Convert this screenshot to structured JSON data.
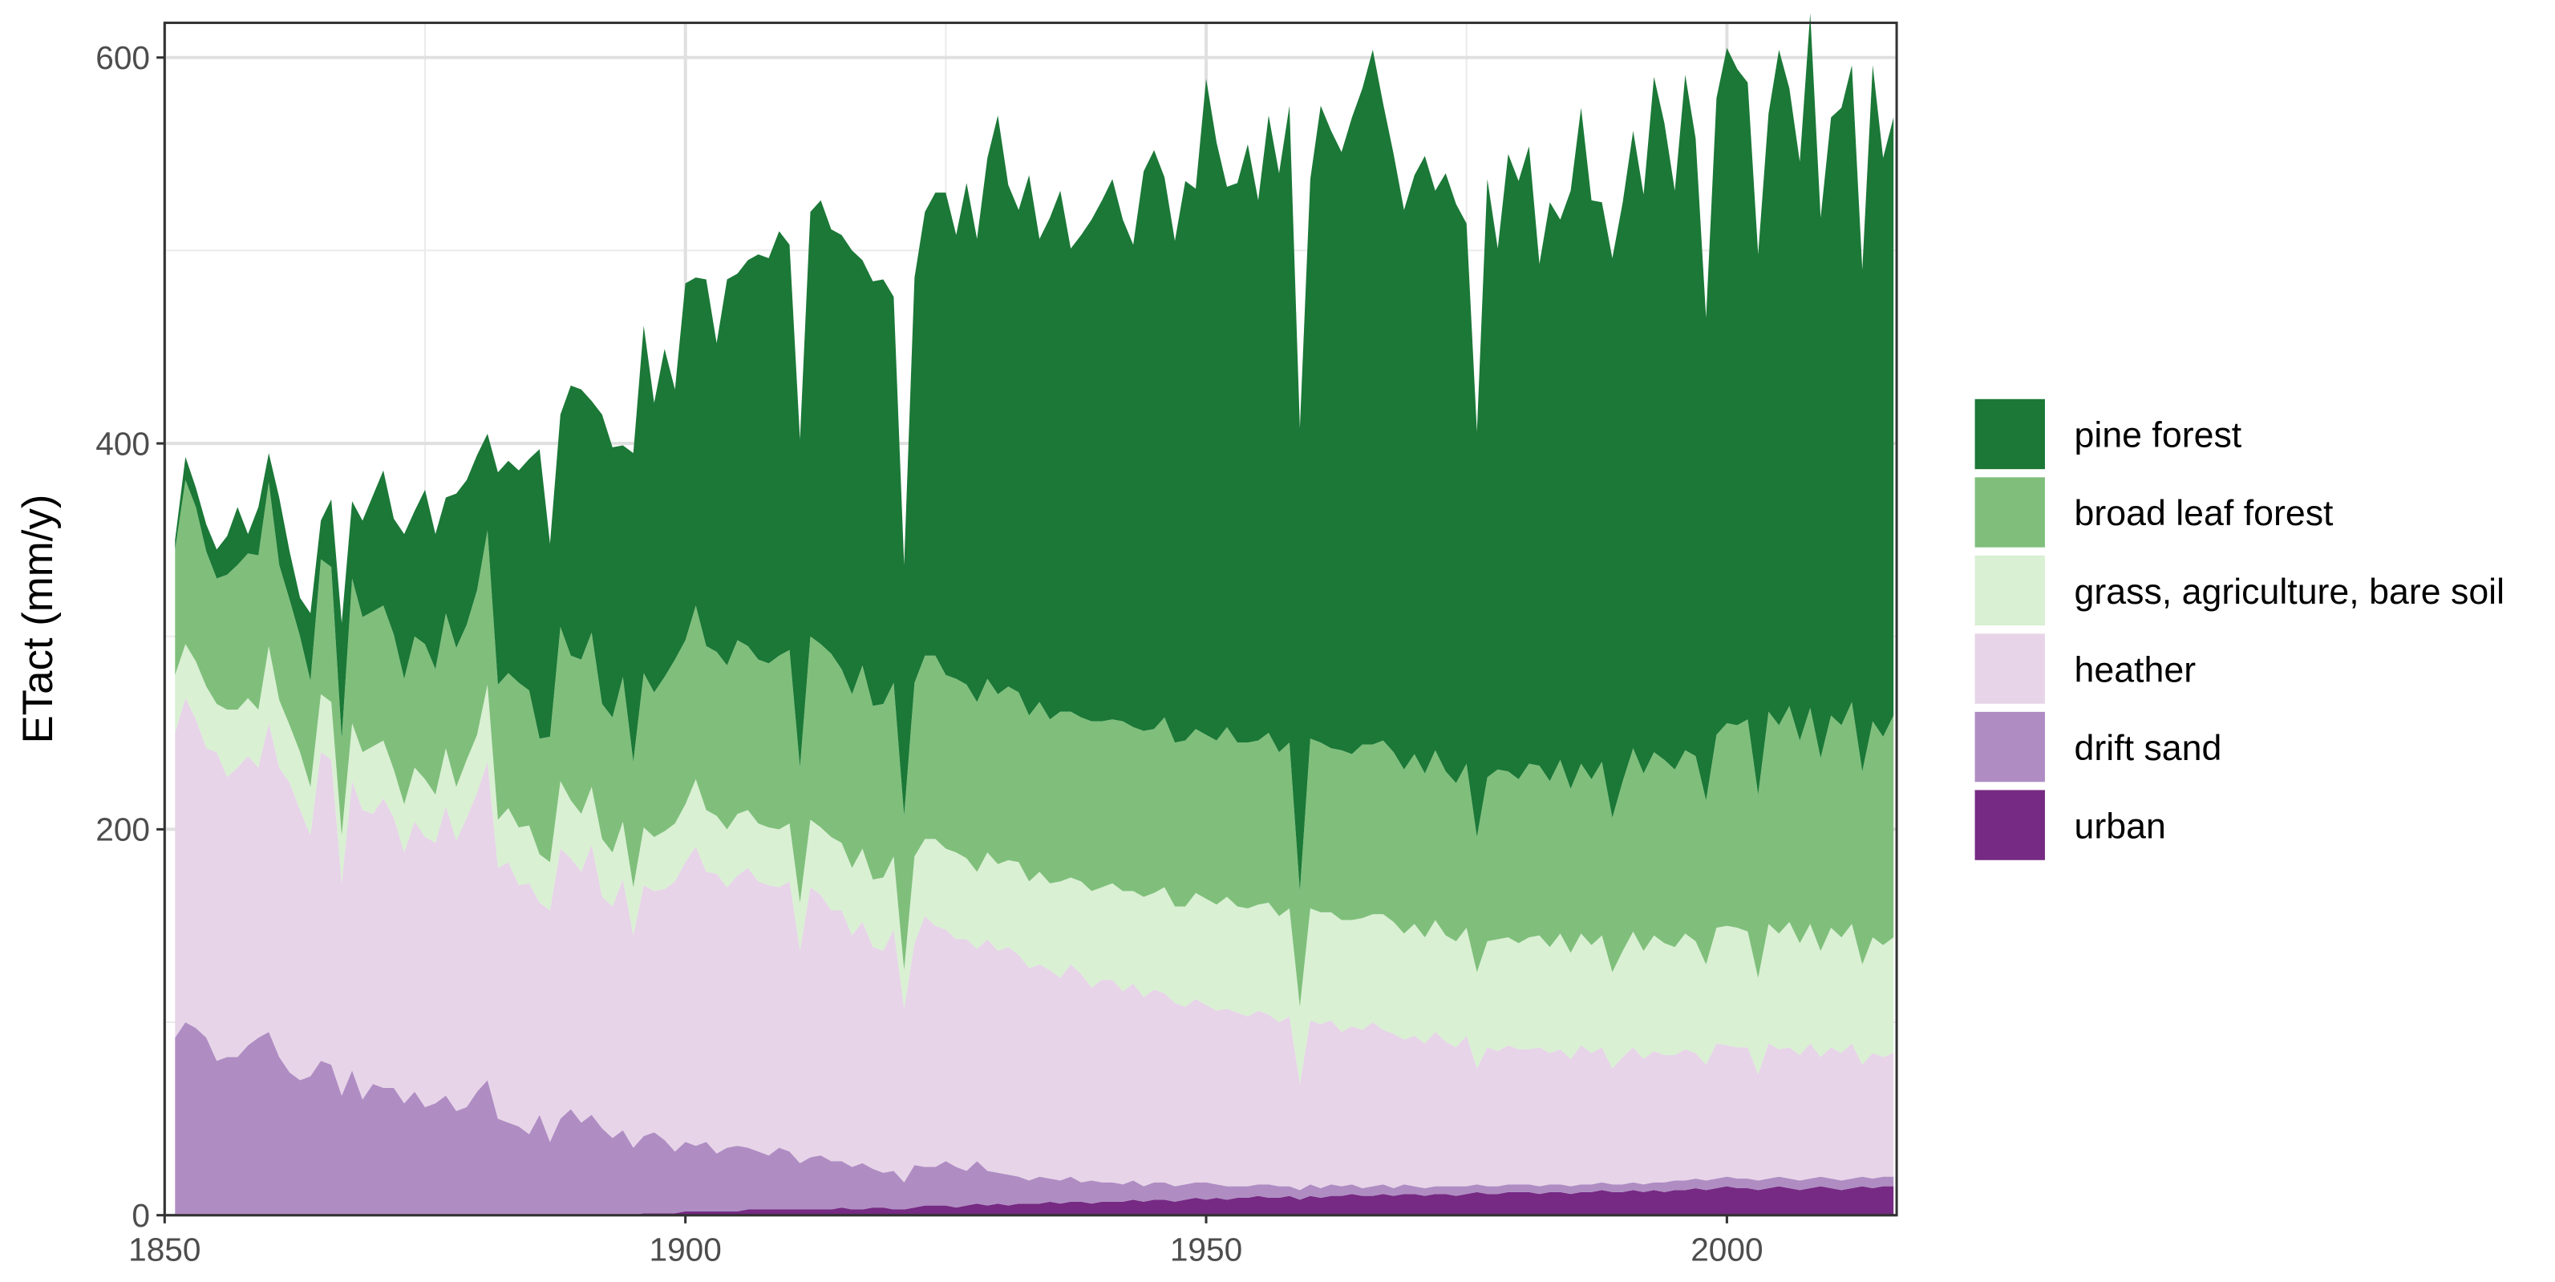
{
  "chart_data": {
    "type": "stacked_area",
    "y_label": "ETact (mm/y)",
    "x": [
      1851,
      1852,
      1853,
      1854,
      1855,
      1856,
      1857,
      1858,
      1859,
      1860,
      1861,
      1862,
      1863,
      1864,
      1865,
      1866,
      1867,
      1868,
      1869,
      1870,
      1871,
      1872,
      1873,
      1874,
      1875,
      1876,
      1877,
      1878,
      1879,
      1880,
      1881,
      1882,
      1883,
      1884,
      1885,
      1886,
      1887,
      1888,
      1889,
      1890,
      1891,
      1892,
      1893,
      1894,
      1895,
      1896,
      1897,
      1898,
      1899,
      1900,
      1901,
      1902,
      1903,
      1904,
      1905,
      1906,
      1907,
      1908,
      1909,
      1910,
      1911,
      1912,
      1913,
      1914,
      1915,
      1916,
      1917,
      1918,
      1919,
      1920,
      1921,
      1922,
      1923,
      1924,
      1925,
      1926,
      1927,
      1928,
      1929,
      1930,
      1931,
      1932,
      1933,
      1934,
      1935,
      1936,
      1937,
      1938,
      1939,
      1940,
      1941,
      1942,
      1943,
      1944,
      1945,
      1946,
      1947,
      1948,
      1949,
      1950,
      1951,
      1952,
      1953,
      1954,
      1955,
      1956,
      1957,
      1958,
      1959,
      1960,
      1961,
      1962,
      1963,
      1964,
      1965,
      1966,
      1967,
      1968,
      1969,
      1970,
      1971,
      1972,
      1973,
      1974,
      1975,
      1976,
      1977,
      1978,
      1979,
      1980,
      1981,
      1982,
      1983,
      1984,
      1985,
      1986,
      1987,
      1988,
      1989,
      1990,
      1991,
      1992,
      1993,
      1994,
      1995,
      1996,
      1997,
      1998,
      1999,
      2000,
      2001,
      2002,
      2003,
      2004,
      2005,
      2006,
      2007,
      2008,
      2009,
      2010,
      2011,
      2012,
      2013,
      2014,
      2015,
      2016
    ],
    "series": [
      {
        "name": "pine forest",
        "color": "#1b7837",
        "values": [
          5,
          12,
          10,
          14,
          15,
          20,
          30,
          10,
          25,
          15,
          35,
          25,
          20,
          35,
          20,
          35,
          60,
          40,
          50,
          60,
          70,
          60,
          75,
          65,
          80,
          70,
          60,
          80,
          75,
          70,
          50,
          110,
          110,
          110,
          120,
          150,
          100,
          110,
          140,
          140,
          120,
          150,
          140,
          120,
          160,
          180,
          150,
          170,
          140,
          185,
          170,
          190,
          160,
          200,
          190,
          200,
          210,
          210,
          220,
          210,
          170,
          220,
          230,
          220,
          225,
          230,
          210,
          220,
          220,
          200,
          130,
          210,
          230,
          240,
          250,
          230,
          260,
          240,
          270,
          300,
          260,
          250,
          280,
          240,
          260,
          270,
          240,
          250,
          260,
          270,
          280,
          260,
          250,
          290,
          300,
          280,
          260,
          290,
          280,
          340,
          310,
          280,
          290,
          310,
          280,
          320,
          300,
          330,
          240,
          290,
          330,
          320,
          310,
          330,
          340,
          360,
          330,
          310,
          290,
          300,
          320,
          290,
          310,
          300,
          280,
          210,
          310,
          270,
          320,
          310,
          320,
          260,
          300,
          280,
          310,
          340,
          300,
          290,
          290,
          300,
          320,
          300,
          350,
          330,
          300,
          350,
          320,
          250,
          330,
          350,
          340,
          330,
          280,
          310,
          350,
          320,
          300,
          360,
          280,
          310,
          320,
          330,
          260,
          340,
          300,
          310
        ]
      },
      {
        "name": "broad leaf forest",
        "color": "#7fbf7b",
        "values": [
          65,
          85,
          80,
          70,
          65,
          70,
          75,
          75,
          80,
          85,
          70,
          65,
          60,
          55,
          70,
          70,
          50,
          75,
          70,
          70,
          70,
          70,
          65,
          68,
          70,
          65,
          70,
          72,
          70,
          75,
          80,
          70,
          70,
          75,
          70,
          60,
          65,
          80,
          75,
          80,
          80,
          70,
          70,
          75,
          65,
          80,
          75,
          80,
          85,
          85,
          90,
          85,
          85,
          85,
          90,
          85,
          85,
          85,
          90,
          90,
          70,
          95,
          95,
          95,
          90,
          90,
          95,
          90,
          90,
          90,
          80,
          90,
          95,
          95,
          90,
          90,
          90,
          88,
          90,
          88,
          90,
          88,
          86,
          88,
          85,
          88,
          86,
          85,
          88,
          86,
          85,
          88,
          85,
          86,
          85,
          88,
          85,
          86,
          85,
          85,
          85,
          88,
          85,
          86,
          85,
          88,
          85,
          86,
          60,
          88,
          88,
          85,
          88,
          86,
          90,
          88,
          90,
          88,
          85,
          88,
          85,
          88,
          85,
          82,
          85,
          70,
          85,
          88,
          86,
          85,
          90,
          88,
          86,
          90,
          85,
          88,
          86,
          90,
          80,
          88,
          95,
          92,
          95,
          95,
          92,
          95,
          96,
          85,
          100,
          105,
          105,
          110,
          95,
          110,
          108,
          112,
          105,
          112,
          100,
          110,
          110,
          115,
          100,
          112,
          108,
          115
        ]
      },
      {
        "name": "grass, agriculture, bare soil",
        "color": "#d9f0d3",
        "values": [
          30,
          28,
          30,
          32,
          25,
          35,
          30,
          30,
          30,
          40,
          35,
          30,
          30,
          25,
          30,
          30,
          25,
          30,
          30,
          35,
          30,
          25,
          25,
          28,
          30,
          25,
          30,
          28,
          30,
          30,
          40,
          25,
          28,
          30,
          30,
          25,
          25,
          35,
          30,
          30,
          30,
          30,
          28,
          30,
          25,
          30,
          28,
          30,
          30,
          30,
          35,
          32,
          30,
          30,
          32,
          30,
          30,
          30,
          30,
          30,
          25,
          35,
          35,
          38,
          35,
          35,
          38,
          35,
          38,
          38,
          20,
          45,
          40,
          45,
          42,
          45,
          42,
          40,
          45,
          45,
          45,
          48,
          45,
          48,
          45,
          50,
          45,
          48,
          50,
          48,
          50,
          52,
          48,
          52,
          50,
          55,
          50,
          52,
          55,
          55,
          55,
          58,
          55,
          56,
          55,
          58,
          55,
          56,
          40,
          58,
          58,
          56,
          58,
          55,
          58,
          56,
          60,
          58,
          55,
          58,
          55,
          58,
          55,
          55,
          56,
          50,
          55,
          58,
          56,
          55,
          58,
          58,
          55,
          60,
          55,
          58,
          56,
          58,
          50,
          55,
          60,
          56,
          60,
          58,
          56,
          60,
          58,
          52,
          60,
          62,
          62,
          60,
          50,
          62,
          60,
          65,
          58,
          62,
          55,
          62,
          60,
          62,
          52,
          60,
          58,
          60
        ]
      },
      {
        "name": "heather",
        "color": "#e7d4e8",
        "values": [
          158,
          168,
          160,
          150,
          160,
          145,
          150,
          150,
          140,
          160,
          150,
          150,
          140,
          125,
          160,
          158,
          110,
          150,
          150,
          140,
          150,
          140,
          130,
          140,
          140,
          135,
          150,
          140,
          150,
          155,
          165,
          130,
          135,
          125,
          130,
          110,
          120,
          140,
          130,
          130,
          140,
          120,
          120,
          130,
          110,
          130,
          125,
          130,
          140,
          145,
          155,
          140,
          145,
          135,
          140,
          145,
          140,
          140,
          135,
          140,
          110,
          140,
          135,
          130,
          130,
          120,
          125,
          115,
          115,
          125,
          90,
          115,
          130,
          125,
          120,
          118,
          120,
          110,
          120,
          115,
          118,
          115,
          110,
          110,
          108,
          105,
          110,
          108,
          100,
          105,
          105,
          100,
          102,
          98,
          100,
          98,
          95,
          92,
          95,
          92,
          90,
          92,
          90,
          88,
          90,
          88,
          85,
          88,
          55,
          85,
          85,
          85,
          80,
          82,
          82,
          85,
          80,
          80,
          75,
          78,
          75,
          80,
          75,
          72,
          78,
          60,
          72,
          70,
          72,
          70,
          70,
          72,
          68,
          70,
          66,
          72,
          68,
          70,
          60,
          66,
          70,
          65,
          68,
          66,
          65,
          68,
          65,
          60,
          70,
          68,
          68,
          68,
          55,
          70,
          66,
          68,
          65,
          70,
          62,
          68,
          66,
          70,
          58,
          65,
          62,
          64
        ]
      },
      {
        "name": "drift sand",
        "color": "#af8dc3",
        "values": [
          92,
          100,
          97,
          92,
          80,
          82,
          82,
          88,
          92,
          95,
          82,
          74,
          70,
          72,
          80,
          78,
          62,
          75,
          60,
          68,
          66,
          66,
          58,
          64,
          56,
          58,
          62,
          54,
          56,
          64,
          70,
          50,
          48,
          46,
          42,
          52,
          38,
          50,
          55,
          48,
          52,
          45,
          40,
          44,
          35,
          40,
          42,
          38,
          32,
          36,
          34,
          36,
          30,
          33,
          34,
          32,
          30,
          28,
          32,
          30,
          24,
          27,
          28,
          25,
          24,
          22,
          24,
          20,
          18,
          20,
          14,
          22,
          20,
          20,
          23,
          21,
          18,
          22,
          18,
          16,
          16,
          14,
          12,
          14,
          12,
          12,
          13,
          10,
          12,
          10,
          10,
          9,
          10,
          8,
          9,
          9,
          8,
          8,
          8,
          9,
          7,
          7,
          6,
          6,
          6,
          7,
          6,
          5,
          5,
          6,
          5,
          6,
          5,
          5,
          4,
          5,
          5,
          4,
          5,
          4,
          4,
          4,
          4,
          5,
          4,
          4,
          4,
          4,
          4,
          4,
          4,
          4,
          4,
          4,
          4,
          4,
          4,
          4,
          4,
          4,
          4,
          4,
          4,
          5,
          5,
          5,
          5,
          5,
          5,
          5,
          5,
          5,
          5,
          5,
          5,
          5,
          5,
          5,
          5,
          5,
          5,
          5,
          5,
          5,
          5,
          5
        ]
      },
      {
        "name": "urban",
        "color": "#762a83",
        "values": [
          0,
          0,
          0,
          0,
          0,
          0,
          0,
          0,
          0,
          0,
          0,
          0,
          0,
          0,
          0,
          0,
          0,
          0,
          0,
          0,
          0,
          0,
          0,
          0,
          0,
          0,
          0,
          0,
          0,
          0,
          0,
          0,
          0,
          0,
          0,
          0,
          0,
          0,
          0,
          0,
          0,
          0,
          0,
          0,
          0,
          1,
          1,
          1,
          1,
          2,
          2,
          2,
          2,
          2,
          2,
          3,
          3,
          3,
          3,
          3,
          3,
          3,
          3,
          3,
          4,
          3,
          3,
          4,
          4,
          3,
          3,
          4,
          5,
          5,
          5,
          4,
          5,
          6,
          5,
          6,
          5,
          6,
          6,
          6,
          7,
          6,
          7,
          7,
          6,
          7,
          7,
          7,
          8,
          7,
          8,
          8,
          7,
          8,
          9,
          8,
          9,
          8,
          9,
          9,
          10,
          9,
          9,
          10,
          8,
          10,
          9,
          10,
          10,
          11,
          10,
          10,
          11,
          10,
          11,
          11,
          10,
          11,
          11,
          10,
          11,
          12,
          11,
          11,
          12,
          12,
          12,
          11,
          12,
          12,
          11,
          12,
          12,
          13,
          12,
          12,
          13,
          12,
          13,
          12,
          13,
          13,
          14,
          13,
          14,
          15,
          14,
          14,
          13,
          14,
          15,
          14,
          13,
          14,
          15,
          14,
          13,
          14,
          15,
          14,
          15,
          15
        ]
      }
    ],
    "xlim": [
      1850,
      2016.3
    ],
    "ylim": [
      0,
      618
    ],
    "xticks": [
      1850,
      1900,
      1950,
      2000
    ],
    "yticks": [
      0,
      200,
      400,
      600
    ],
    "x_minor": [
      1875,
      1925,
      1975
    ],
    "y_minor": [
      100,
      300,
      500
    ],
    "grid": true,
    "legend": "right"
  }
}
